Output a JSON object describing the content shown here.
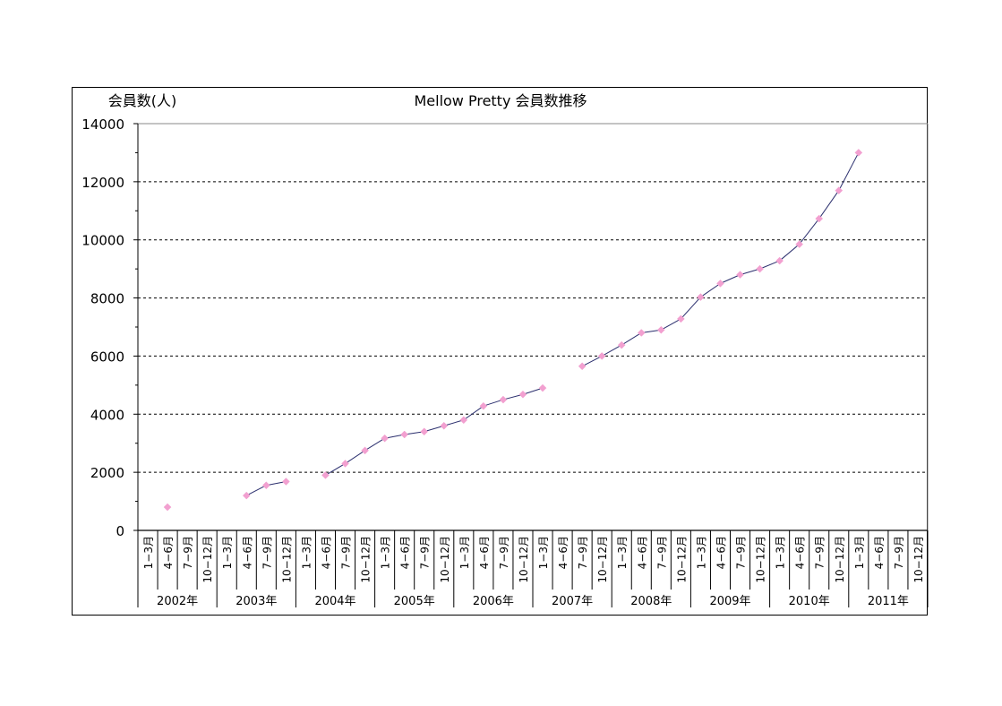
{
  "chart_data": {
    "type": "line",
    "title": "Mellow Pretty 会員数推移",
    "ylabel": "会員数(人)",
    "ylim": [
      0,
      14000
    ],
    "yticks": [
      "0",
      "2000",
      "4000",
      "6000",
      "8000",
      "10000",
      "12000",
      "14000"
    ],
    "grid": true,
    "quarters": [
      "1−3月",
      "4−6月",
      "7−9月",
      "10−12月"
    ],
    "years": [
      "2002年",
      "2003年",
      "2004年",
      "2005年",
      "2006年",
      "2007年",
      "2008年",
      "2009年",
      "2010年",
      "2011年"
    ],
    "series": [
      {
        "values": [
          null,
          800,
          null,
          null,
          null,
          1200,
          1550,
          1680,
          null,
          1900,
          2300,
          2750,
          3170,
          3300,
          3400,
          3600,
          3800,
          4280,
          4500,
          4680,
          4900,
          null,
          5650,
          6000,
          6380,
          6800,
          6900,
          7280,
          8030,
          8500,
          8800,
          9000,
          9280,
          9850,
          10730,
          11700,
          13000,
          null,
          null,
          null
        ]
      }
    ],
    "colors": {
      "line": "#2b2f6e",
      "marker": "#f2a0d0",
      "grid": "#000000"
    }
  }
}
